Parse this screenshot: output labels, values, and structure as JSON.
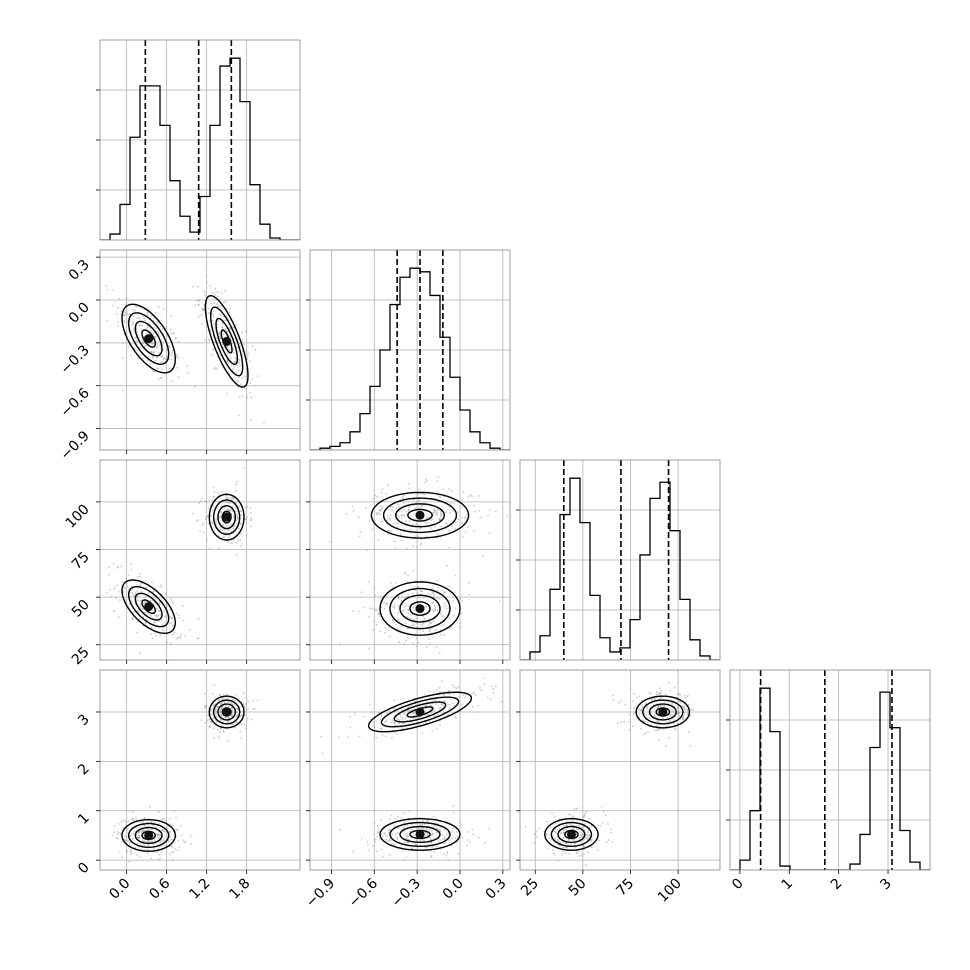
{
  "chart_data": {
    "type": "corner",
    "grid": true,
    "parameters": [
      {
        "index": 0,
        "range": [
          -0.4,
          2.6
        ],
        "ticks": [
          0.0,
          0.6,
          1.2,
          1.8
        ],
        "tick_labels": [
          "0.0",
          "0.6",
          "1.2",
          "1.8"
        ],
        "quantiles": [
          0.28,
          1.08,
          1.57
        ]
      },
      {
        "index": 1,
        "range": [
          -1.05,
          0.35
        ],
        "ticks": [
          -0.9,
          -0.6,
          -0.3,
          0.0,
          0.3
        ],
        "tick_labels": [
          "−0.9",
          "−0.6",
          "−0.3",
          "0.0",
          "0.3"
        ],
        "quantiles": [
          -0.44,
          -0.28,
          -0.12
        ]
      },
      {
        "index": 2,
        "range": [
          17,
          122
        ],
        "ticks": [
          25,
          50,
          75,
          100
        ],
        "tick_labels": [
          "25",
          "50",
          "75",
          "100"
        ],
        "quantiles": [
          40,
          70,
          95
        ]
      },
      {
        "index": 3,
        "range": [
          -0.2,
          3.85
        ],
        "ticks": [
          0,
          1,
          2,
          3
        ],
        "tick_labels": [
          "0",
          "1",
          "2",
          "3"
        ],
        "quantiles": [
          0.42,
          1.72,
          3.08
        ]
      }
    ],
    "histograms": [
      {
        "param": 0,
        "bin_edges": [
          -0.4,
          -0.25,
          -0.1,
          0.05,
          0.2,
          0.35,
          0.5,
          0.65,
          0.8,
          0.95,
          1.1,
          1.25,
          1.4,
          1.55,
          1.7,
          1.85,
          2.0,
          2.15,
          2.3,
          2.45,
          2.6
        ],
        "counts": [
          0,
          3,
          18,
          52,
          78,
          78,
          58,
          30,
          12,
          4,
          22,
          58,
          88,
          92,
          70,
          28,
          8,
          1,
          0,
          0
        ]
      },
      {
        "param": 1,
        "bin_edges": [
          -1.05,
          -0.98,
          -0.91,
          -0.84,
          -0.77,
          -0.7,
          -0.63,
          -0.56,
          -0.49,
          -0.42,
          -0.35,
          -0.28,
          -0.21,
          -0.14,
          -0.07,
          0.0,
          0.07,
          0.14,
          0.21,
          0.28,
          0.35
        ],
        "counts": [
          0,
          1,
          2,
          4,
          10,
          20,
          35,
          55,
          80,
          95,
          100,
          98,
          85,
          62,
          40,
          22,
          10,
          4,
          1,
          0
        ]
      },
      {
        "param": 2,
        "bin_edges": [
          17,
          22.25,
          27.5,
          32.75,
          38,
          43.25,
          48.5,
          53.75,
          59,
          64.25,
          69.5,
          74.75,
          80,
          85.25,
          90.5,
          95.75,
          101,
          106.25,
          111.5,
          116.75,
          122
        ],
        "counts": [
          0,
          4,
          12,
          35,
          72,
          90,
          68,
          32,
          11,
          4,
          6,
          20,
          52,
          80,
          88,
          64,
          30,
          10,
          2,
          0
        ]
      },
      {
        "param": 3,
        "bin_edges": [
          -0.2,
          0.0025,
          0.205,
          0.4075,
          0.61,
          0.8125,
          1.015,
          1.2175,
          1.42,
          1.6225,
          1.825,
          2.0275,
          2.23,
          2.4325,
          2.635,
          2.8375,
          3.04,
          3.2425,
          3.445,
          3.6475,
          3.85
        ],
        "counts": [
          0,
          5,
          30,
          92,
          70,
          2,
          0,
          0,
          0,
          0,
          0,
          0,
          3,
          18,
          62,
          90,
          72,
          20,
          4,
          0
        ]
      }
    ],
    "blobs": [
      {
        "params": [
          0,
          1
        ],
        "mean": [
          0.33,
          -0.27
        ],
        "sd": [
          0.2,
          0.12
        ],
        "corr": -0.6
      },
      {
        "params": [
          0,
          1
        ],
        "mean": [
          1.5,
          -0.29
        ],
        "sd": [
          0.16,
          0.16
        ],
        "corr": -0.75
      },
      {
        "params": [
          0,
          2
        ],
        "mean": [
          0.33,
          45
        ],
        "sd": [
          0.2,
          7
        ],
        "corr": -0.6
      },
      {
        "params": [
          0,
          2
        ],
        "mean": [
          1.5,
          92
        ],
        "sd": [
          0.13,
          6
        ],
        "corr": 0.0
      },
      {
        "params": [
          0,
          3
        ],
        "mean": [
          0.33,
          0.5
        ],
        "sd": [
          0.2,
          0.16
        ],
        "corr": 0.0
      },
      {
        "params": [
          0,
          3
        ],
        "mean": [
          1.5,
          3.0
        ],
        "sd": [
          0.13,
          0.16
        ],
        "corr": 0.0
      },
      {
        "params": [
          1,
          2
        ],
        "mean": [
          -0.28,
          44
        ],
        "sd": [
          0.14,
          7
        ],
        "corr": 0.0
      },
      {
        "params": [
          1,
          2
        ],
        "mean": [
          -0.28,
          93
        ],
        "sd": [
          0.17,
          6
        ],
        "corr": 0.0
      },
      {
        "params": [
          1,
          3
        ],
        "mean": [
          -0.28,
          0.52
        ],
        "sd": [
          0.14,
          0.16
        ],
        "corr": 0.0
      },
      {
        "params": [
          1,
          3
        ],
        "mean": [
          -0.28,
          3.0
        ],
        "sd": [
          0.18,
          0.2
        ],
        "corr": 0.7
      },
      {
        "params": [
          2,
          3
        ],
        "mean": [
          44,
          0.52
        ],
        "sd": [
          7,
          0.16
        ],
        "corr": 0.0
      },
      {
        "params": [
          2,
          3
        ],
        "mean": [
          92,
          3.0
        ],
        "sd": [
          7,
          0.16
        ],
        "corr": 0.0
      }
    ],
    "contour_levels_sigma": [
      0.5,
      1.0,
      1.5,
      2.0
    ]
  }
}
